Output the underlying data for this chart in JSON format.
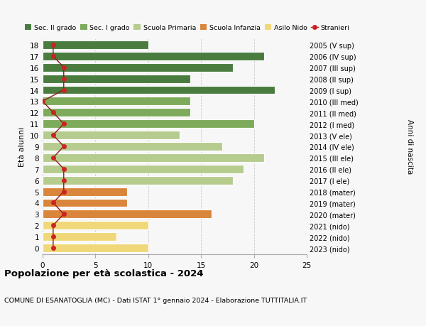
{
  "ages": [
    18,
    17,
    16,
    15,
    14,
    13,
    12,
    11,
    10,
    9,
    8,
    7,
    6,
    5,
    4,
    3,
    2,
    1,
    0
  ],
  "right_labels": [
    "2005 (V sup)",
    "2006 (IV sup)",
    "2007 (III sup)",
    "2008 (II sup)",
    "2009 (I sup)",
    "2010 (III med)",
    "2011 (II med)",
    "2012 (I med)",
    "2013 (V ele)",
    "2014 (IV ele)",
    "2015 (III ele)",
    "2016 (II ele)",
    "2017 (I ele)",
    "2018 (mater)",
    "2019 (mater)",
    "2020 (mater)",
    "2021 (nido)",
    "2022 (nido)",
    "2023 (nido)"
  ],
  "bar_values": [
    10,
    21,
    18,
    14,
    22,
    14,
    14,
    20,
    13,
    17,
    21,
    19,
    18,
    8,
    8,
    16,
    10,
    7,
    10
  ],
  "bar_colors": [
    "#4a7c3f",
    "#4a7c3f",
    "#4a7c3f",
    "#4a7c3f",
    "#4a7c3f",
    "#7eab5b",
    "#7eab5b",
    "#7eab5b",
    "#b5cc8e",
    "#b5cc8e",
    "#b5cc8e",
    "#b5cc8e",
    "#b5cc8e",
    "#d9853b",
    "#d9853b",
    "#d9853b",
    "#f0d87a",
    "#f0d87a",
    "#f0d87a"
  ],
  "stranieri_values": [
    1,
    1,
    2,
    2,
    2,
    0,
    1,
    2,
    1,
    2,
    1,
    2,
    2,
    2,
    1,
    2,
    1,
    1,
    1
  ],
  "legend_labels": [
    "Sec. II grado",
    "Sec. I grado",
    "Scuola Primaria",
    "Scuola Infanzia",
    "Asilo Nido",
    "Stranieri"
  ],
  "legend_colors": [
    "#4a7c3f",
    "#7eab5b",
    "#b5cc8e",
    "#d9853b",
    "#f0d87a",
    "#b22222"
  ],
  "ylabel": "Età alunni",
  "right_ylabel": "Anni di nascita",
  "title": "Popolazione per età scolastica - 2024",
  "subtitle": "COMUNE DI ESANATOGLIA (MC) - Dati ISTAT 1° gennaio 2024 - Elaborazione TUTTITALIA.IT",
  "xlim": [
    0,
    25
  ],
  "xticks": [
    0,
    5,
    10,
    15,
    20,
    25
  ],
  "background_color": "#f7f7f7"
}
